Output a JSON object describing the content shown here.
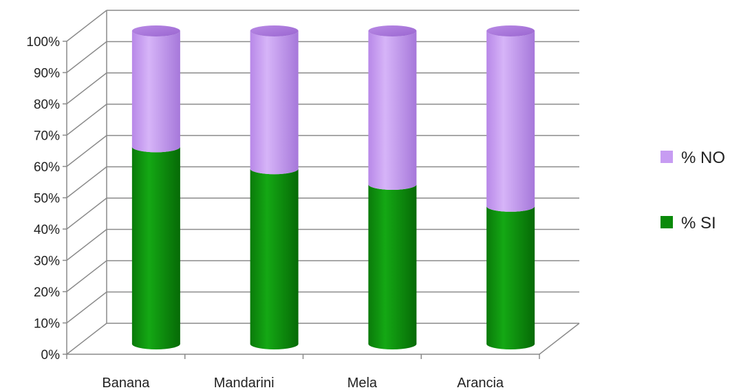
{
  "chart_data": {
    "type": "bar",
    "stacked": true,
    "percent": true,
    "style": "3d-cylinder",
    "title": "",
    "xlabel": "",
    "ylabel": "",
    "categories": [
      "Banana",
      "Mandarini",
      "Mela",
      "Arancia"
    ],
    "series": [
      {
        "name": "% SI",
        "values": [
          63,
          56,
          51,
          44
        ],
        "color": "#0a8a0a"
      },
      {
        "name": "% NO",
        "values": [
          37,
          44,
          49,
          56
        ],
        "color": "#c79cf2"
      }
    ],
    "ylim": [
      0,
      100
    ],
    "yticks": [
      "0%",
      "10%",
      "20%",
      "30%",
      "40%",
      "50%",
      "60%",
      "70%",
      "80%",
      "90%",
      "100%"
    ],
    "grid": true,
    "legend": {
      "position": "right"
    }
  }
}
